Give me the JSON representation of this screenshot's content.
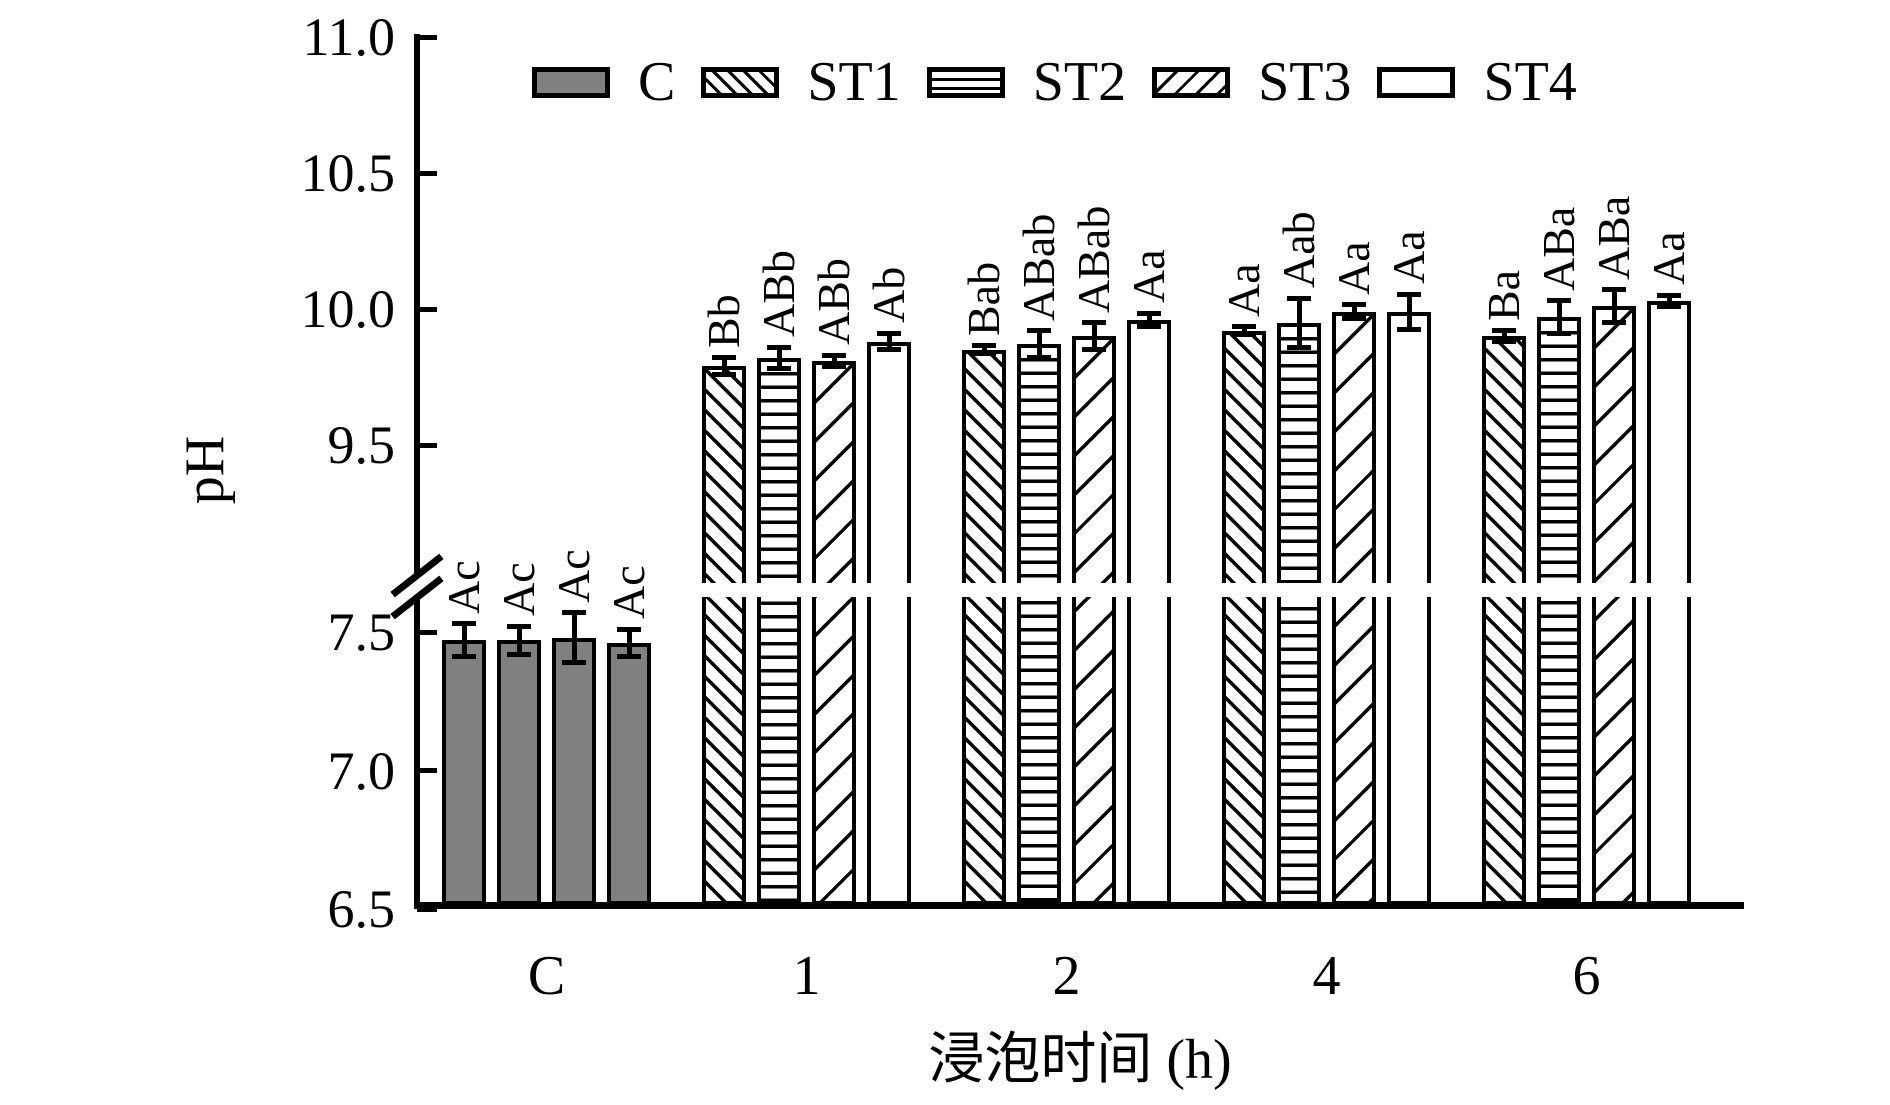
{
  "figure": {
    "ylabel": "pH",
    "xlabel": "浸泡时间 (h)"
  },
  "chart_data": {
    "type": "bar",
    "title": "",
    "xlabel": "浸泡时间 (h)",
    "ylabel": "pH",
    "grid": false,
    "legend_position": "top-center",
    "legend": [
      "C",
      "ST1",
      "ST2",
      "ST3",
      "ST4"
    ],
    "y_axis": {
      "upper_segment": {
        "ticks": [
          9.5,
          10.0,
          10.5,
          11.0
        ],
        "range": [
          9.0,
          11.0
        ]
      },
      "lower_segment": {
        "ticks": [
          6.5,
          7.0,
          7.5
        ],
        "range": [
          6.5,
          7.63
        ]
      },
      "axis_break": true
    },
    "categories": [
      "C",
      "1",
      "2",
      "4",
      "6"
    ],
    "groups": [
      {
        "category": "C",
        "bars": [
          {
            "series": "C",
            "value": 7.47,
            "err": 0.06,
            "label": "Ac"
          },
          {
            "series": "C",
            "value": 7.47,
            "err": 0.05,
            "label": "Ac"
          },
          {
            "series": "C",
            "value": 7.48,
            "err": 0.09,
            "label": "Ac"
          },
          {
            "series": "C",
            "value": 7.46,
            "err": 0.05,
            "label": "Ac"
          }
        ]
      },
      {
        "category": "1",
        "bars": [
          {
            "series": "ST1",
            "value": 9.79,
            "err": 0.03,
            "label": "Bb"
          },
          {
            "series": "ST2",
            "value": 9.82,
            "err": 0.04,
            "label": "ABb"
          },
          {
            "series": "ST3",
            "value": 9.81,
            "err": 0.02,
            "label": "ABb"
          },
          {
            "series": "ST4",
            "value": 9.88,
            "err": 0.03,
            "label": "Ab"
          }
        ]
      },
      {
        "category": "2",
        "bars": [
          {
            "series": "ST1",
            "value": 9.85,
            "err": 0.015,
            "label": "Bab"
          },
          {
            "series": "ST2",
            "value": 9.87,
            "err": 0.05,
            "label": "ABab"
          },
          {
            "series": "ST3",
            "value": 9.9,
            "err": 0.05,
            "label": "ABab"
          },
          {
            "series": "ST4",
            "value": 9.96,
            "err": 0.025,
            "label": "Aa"
          }
        ]
      },
      {
        "category": "4",
        "bars": [
          {
            "series": "ST1",
            "value": 9.92,
            "err": 0.015,
            "label": "Aa"
          },
          {
            "series": "ST2",
            "value": 9.95,
            "err": 0.09,
            "label": "Aab"
          },
          {
            "series": "ST3",
            "value": 9.99,
            "err": 0.025,
            "label": "Aa"
          },
          {
            "series": "ST4",
            "value": 9.99,
            "err": 0.065,
            "label": "Aa"
          }
        ]
      },
      {
        "category": "6",
        "bars": [
          {
            "series": "ST1",
            "value": 9.9,
            "err": 0.02,
            "label": "Ba"
          },
          {
            "series": "ST2",
            "value": 9.97,
            "err": 0.06,
            "label": "ABa"
          },
          {
            "series": "ST3",
            "value": 10.01,
            "err": 0.06,
            "label": "ABa"
          },
          {
            "series": "ST4",
            "value": 10.03,
            "err": 0.02,
            "label": "Aa"
          }
        ]
      }
    ],
    "series_styles": {
      "C": {
        "fill": "#808080",
        "hatch": "none"
      },
      "ST1": {
        "fill": "#ffffff",
        "hatch": "diagonal-forward"
      },
      "ST2": {
        "fill": "#ffffff",
        "hatch": "horizontal"
      },
      "ST3": {
        "fill": "#ffffff",
        "hatch": "diagonal-back"
      },
      "ST4": {
        "fill": "#ffffff",
        "hatch": "none"
      }
    },
    "colors": {
      "stroke": "#000000",
      "control_fill": "#808080",
      "background": "#ffffff"
    }
  }
}
